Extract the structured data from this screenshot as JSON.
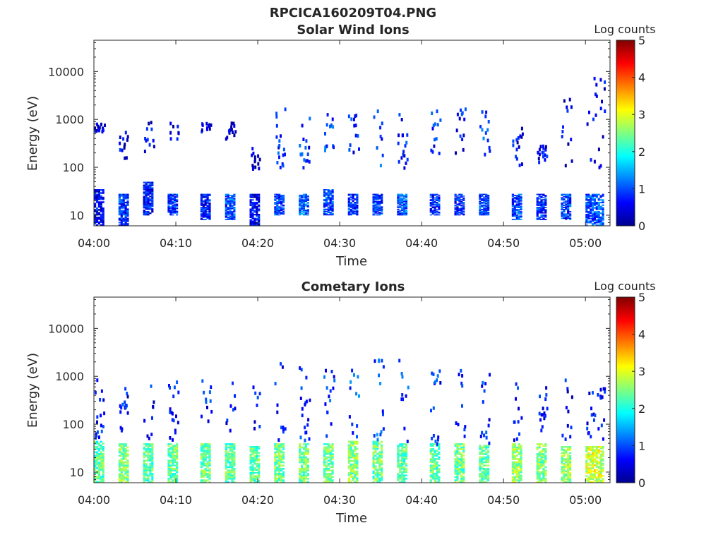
{
  "figure_title": "RPCICA160209T04.PNG",
  "chart_data": [
    {
      "type": "heatmap",
      "title": "Solar Wind Ions",
      "xlabel": "Time",
      "ylabel": "Energy (eV)",
      "x_ticks": [
        "04:00",
        "04:10",
        "04:20",
        "04:30",
        "04:40",
        "04:50",
        "05:00"
      ],
      "xlim": [
        "04:00",
        "05:03"
      ],
      "y_scale": "log",
      "y_ticks": [
        "10",
        "100",
        "1000",
        "10000"
      ],
      "ylim": [
        6,
        45000
      ],
      "colorbar": {
        "label": "Log counts",
        "ticks": [
          "0",
          "1",
          "2",
          "3",
          "4",
          "5"
        ],
        "range": [
          0,
          5
        ],
        "colormap": "jet"
      },
      "background": "#ffffff",
      "grid": false,
      "bursts": [
        {
          "start": "04:00",
          "end": "04:01",
          "low_band": [
            6,
            35
          ],
          "low_level": 0.6,
          "high_band": [
            600,
            900
          ],
          "high_level": 0.4
        },
        {
          "start": "04:03",
          "end": "04:04",
          "low_band": [
            6,
            28
          ],
          "low_level": 0.8,
          "high_band": [
            150,
            600
          ],
          "high_level": 0.3
        },
        {
          "start": "04:06",
          "end": "04:07",
          "low_band": [
            10,
            50
          ],
          "low_level": 0.7,
          "high_band": [
            200,
            1000
          ],
          "high_level": 0.3
        },
        {
          "start": "04:09",
          "end": "04:10",
          "low_band": [
            10,
            28
          ],
          "low_level": 0.8,
          "high_band": [
            400,
            900
          ],
          "high_level": 0.2
        },
        {
          "start": "04:13",
          "end": "04:14",
          "low_band": [
            8,
            28
          ],
          "low_level": 0.7,
          "high_band": [
            600,
            900
          ],
          "high_level": 0.2
        },
        {
          "start": "04:16",
          "end": "04:17",
          "low_band": [
            8,
            28
          ],
          "low_level": 1.0,
          "high_band": [
            400,
            1000
          ],
          "high_level": 0.2
        },
        {
          "start": "04:19",
          "end": "04:20",
          "low_band": [
            6,
            28
          ],
          "low_level": 0.6,
          "high_band": [
            100,
            400
          ],
          "high_level": 0.3
        },
        {
          "start": "04:22",
          "end": "04:23",
          "low_band": [
            10,
            28
          ],
          "low_level": 0.9,
          "high_band": [
            100,
            2000
          ],
          "high_level": 0.6
        },
        {
          "start": "04:25",
          "end": "04:26",
          "low_band": [
            10,
            28
          ],
          "low_level": 1.1,
          "high_band": [
            100,
            1500
          ],
          "high_level": 0.6
        },
        {
          "start": "04:28",
          "end": "04:29",
          "low_band": [
            10,
            35
          ],
          "low_level": 0.9,
          "high_band": [
            200,
            1500
          ],
          "high_level": 0.7
        },
        {
          "start": "04:31",
          "end": "04:32",
          "low_band": [
            10,
            28
          ],
          "low_level": 0.8,
          "high_band": [
            200,
            1500
          ],
          "high_level": 0.6
        },
        {
          "start": "04:34",
          "end": "04:35",
          "low_band": [
            10,
            28
          ],
          "low_level": 0.9,
          "high_band": [
            100,
            2000
          ],
          "high_level": 0.8
        },
        {
          "start": "04:37",
          "end": "04:38",
          "low_band": [
            10,
            28
          ],
          "low_level": 1.0,
          "high_band": [
            100,
            1800
          ],
          "high_level": 0.6
        },
        {
          "start": "04:41",
          "end": "04:42",
          "low_band": [
            10,
            28
          ],
          "low_level": 0.8,
          "high_band": [
            200,
            1800
          ],
          "high_level": 0.6
        },
        {
          "start": "04:44",
          "end": "04:45",
          "low_band": [
            10,
            28
          ],
          "low_level": 0.8,
          "high_band": [
            150,
            1800
          ],
          "high_level": 0.5
        },
        {
          "start": "04:47",
          "end": "04:48",
          "low_band": [
            10,
            28
          ],
          "low_level": 0.9,
          "high_band": [
            150,
            1800
          ],
          "high_level": 0.7
        },
        {
          "start": "04:51",
          "end": "04:52",
          "low_band": [
            8,
            28
          ],
          "low_level": 0.9,
          "high_band": [
            100,
            800
          ],
          "high_level": 0.4
        },
        {
          "start": "04:54",
          "end": "04:55",
          "low_band": [
            8,
            28
          ],
          "low_level": 0.8,
          "high_band": [
            100,
            300
          ],
          "high_level": 0.4
        },
        {
          "start": "04:57",
          "end": "04:58",
          "low_band": [
            8,
            28
          ],
          "low_level": 0.9,
          "high_band": [
            100,
            3000
          ],
          "high_level": 0.3
        },
        {
          "start": "05:00",
          "end": "05:02",
          "low_band": [
            6,
            28
          ],
          "low_level": 1.0,
          "high_band": [
            100,
            9000
          ],
          "high_level": 0.3
        }
      ]
    },
    {
      "type": "heatmap",
      "title": "Cometary Ions",
      "xlabel": "Time",
      "ylabel": "Energy (eV)",
      "x_ticks": [
        "04:00",
        "04:10",
        "04:20",
        "04:30",
        "04:40",
        "04:50",
        "05:00"
      ],
      "xlim": [
        "04:00",
        "05:03"
      ],
      "y_scale": "log",
      "y_ticks": [
        "10",
        "100",
        "1000",
        "10000"
      ],
      "ylim": [
        6,
        45000
      ],
      "colorbar": {
        "label": "Log counts",
        "ticks": [
          "0",
          "1",
          "2",
          "3",
          "4",
          "5"
        ],
        "range": [
          0,
          5
        ],
        "colormap": "jet"
      },
      "background": "#ffffff",
      "grid": false,
      "bursts": [
        {
          "start": "04:00",
          "end": "04:01",
          "low_band": [
            6,
            45
          ],
          "low_level": 2.3,
          "high_band": [
            50,
            1000
          ],
          "high_level": 0.5
        },
        {
          "start": "04:03",
          "end": "04:04",
          "low_band": [
            6,
            40
          ],
          "low_level": 2.5,
          "high_band": [
            50,
            900
          ],
          "high_level": 0.5
        },
        {
          "start": "04:06",
          "end": "04:07",
          "low_band": [
            6,
            40
          ],
          "low_level": 2.3,
          "high_band": [
            50,
            900
          ],
          "high_level": 0.5
        },
        {
          "start": "04:09",
          "end": "04:10",
          "low_band": [
            6,
            40
          ],
          "low_level": 2.4,
          "high_band": [
            50,
            1000
          ],
          "high_level": 0.5
        },
        {
          "start": "04:13",
          "end": "04:14",
          "low_band": [
            6,
            40
          ],
          "low_level": 2.4,
          "high_band": [
            50,
            900
          ],
          "high_level": 0.5
        },
        {
          "start": "04:16",
          "end": "04:17",
          "low_band": [
            6,
            40
          ],
          "low_level": 2.3,
          "high_band": [
            50,
            900
          ],
          "high_level": 0.5
        },
        {
          "start": "04:19",
          "end": "04:20",
          "low_band": [
            6,
            35
          ],
          "low_level": 2.3,
          "high_band": [
            40,
            1000
          ],
          "high_level": 0.5
        },
        {
          "start": "04:22",
          "end": "04:23",
          "low_band": [
            6,
            40
          ],
          "low_level": 2.4,
          "high_band": [
            40,
            2000
          ],
          "high_level": 0.6
        },
        {
          "start": "04:25",
          "end": "04:26",
          "low_band": [
            6,
            40
          ],
          "low_level": 2.5,
          "high_band": [
            40,
            2000
          ],
          "high_level": 0.7
        },
        {
          "start": "04:28",
          "end": "04:29",
          "low_band": [
            6,
            40
          ],
          "low_level": 2.4,
          "high_band": [
            40,
            2000
          ],
          "high_level": 0.7
        },
        {
          "start": "04:31",
          "end": "04:32",
          "low_band": [
            6,
            45
          ],
          "low_level": 2.5,
          "high_band": [
            40,
            2000
          ],
          "high_level": 0.8
        },
        {
          "start": "04:34",
          "end": "04:35",
          "low_band": [
            6,
            45
          ],
          "low_level": 2.4,
          "high_band": [
            40,
            3500
          ],
          "high_level": 0.8
        },
        {
          "start": "04:37",
          "end": "04:38",
          "low_band": [
            6,
            40
          ],
          "low_level": 2.3,
          "high_band": [
            40,
            2500
          ],
          "high_level": 0.7
        },
        {
          "start": "04:41",
          "end": "04:42",
          "low_band": [
            6,
            40
          ],
          "low_level": 2.3,
          "high_band": [
            40,
            1500
          ],
          "high_level": 0.6
        },
        {
          "start": "04:44",
          "end": "04:45",
          "low_band": [
            6,
            40
          ],
          "low_level": 2.4,
          "high_band": [
            40,
            1500
          ],
          "high_level": 0.6
        },
        {
          "start": "04:47",
          "end": "04:48",
          "low_band": [
            6,
            40
          ],
          "low_level": 2.3,
          "high_band": [
            40,
            1800
          ],
          "high_level": 0.6
        },
        {
          "start": "04:51",
          "end": "04:52",
          "low_band": [
            6,
            40
          ],
          "low_level": 2.6,
          "high_band": [
            50,
            800
          ],
          "high_level": 0.5
        },
        {
          "start": "04:54",
          "end": "04:55",
          "low_band": [
            6,
            40
          ],
          "low_level": 2.5,
          "high_band": [
            50,
            800
          ],
          "high_level": 0.5
        },
        {
          "start": "04:57",
          "end": "04:58",
          "low_band": [
            6,
            35
          ],
          "low_level": 2.6,
          "high_band": [
            50,
            900
          ],
          "high_level": 0.5
        },
        {
          "start": "05:00",
          "end": "05:02",
          "low_band": [
            6,
            35
          ],
          "low_level": 2.9,
          "high_band": [
            50,
            800
          ],
          "high_level": 0.5
        }
      ]
    }
  ]
}
